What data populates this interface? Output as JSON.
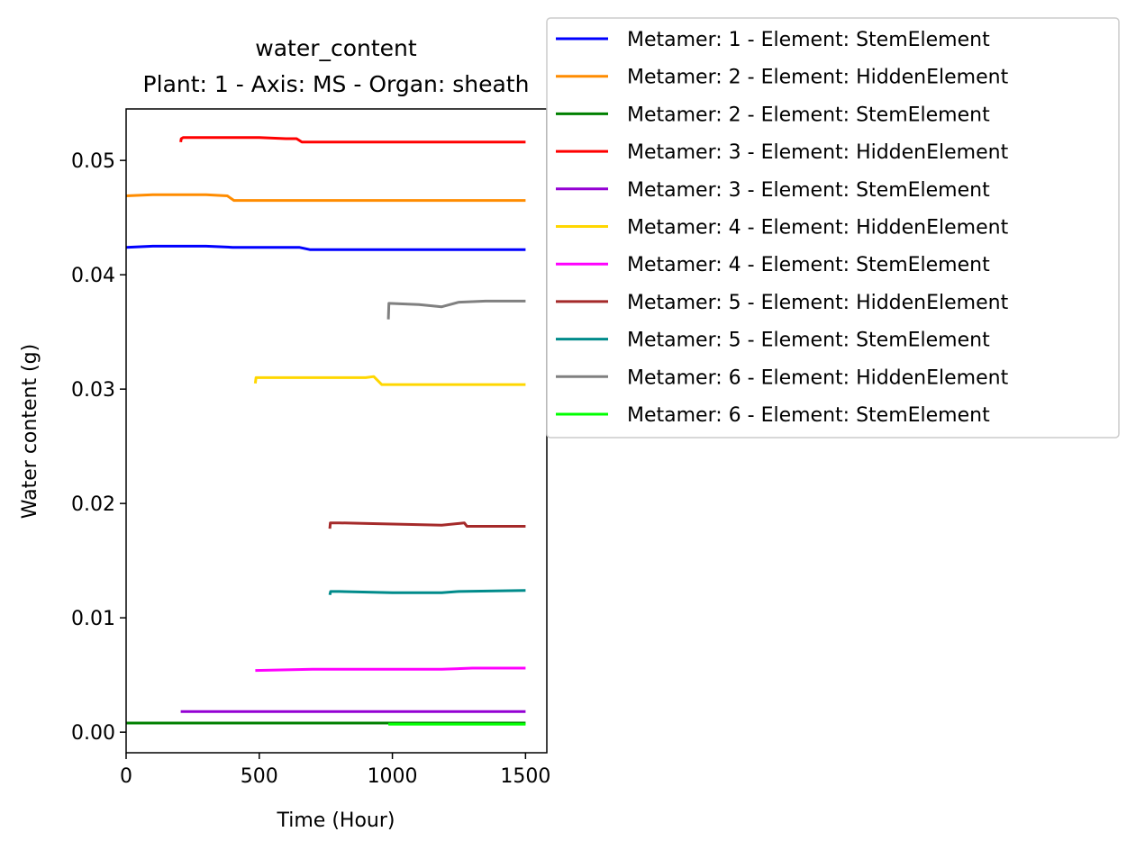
{
  "chart_data": {
    "type": "line",
    "title": "water_content",
    "subtitle": "Plant: 1 - Axis: MS - Organ: sheath",
    "xlabel": "Time (Hour)",
    "ylabel": "Water content (g)",
    "xlim": [
      0,
      1580
    ],
    "ylim": [
      -0.0018,
      0.0545
    ],
    "xticks": [
      0,
      500,
      1000,
      1500
    ],
    "xtick_labels": [
      "0",
      "500",
      "1000",
      "1500"
    ],
    "yticks": [
      0.0,
      0.01,
      0.02,
      0.03,
      0.04,
      0.05
    ],
    "ytick_labels": [
      "0.00",
      "0.01",
      "0.02",
      "0.03",
      "0.04",
      "0.05"
    ],
    "grid": false,
    "legend_position": "outside-top-right",
    "series": [
      {
        "name": "Metamer: 1 - Element: StemElement",
        "color": "#0000ff",
        "x": [
          0,
          100,
          200,
          300,
          400,
          500,
          600,
          650,
          690,
          1000,
          1500
        ],
        "y": [
          0.0424,
          0.0425,
          0.0425,
          0.0425,
          0.0424,
          0.0424,
          0.0424,
          0.0424,
          0.0422,
          0.0422,
          0.0422
        ]
      },
      {
        "name": "Metamer: 2 - Element: HiddenElement",
        "color": "#ff8c00",
        "x": [
          0,
          100,
          200,
          300,
          380,
          405,
          800,
          1200,
          1500
        ],
        "y": [
          0.0469,
          0.047,
          0.047,
          0.047,
          0.0469,
          0.0465,
          0.0465,
          0.0465,
          0.0465
        ]
      },
      {
        "name": "Metamer: 2 - Element: StemElement",
        "color": "#008000",
        "x": [
          0,
          500,
          1000,
          1500
        ],
        "y": [
          0.0008,
          0.0008,
          0.0008,
          0.0008
        ]
      },
      {
        "name": "Metamer: 3 - Element: HiddenElement",
        "color": "#ff0000",
        "x": [
          205,
          207,
          215,
          300,
          400,
          500,
          600,
          640,
          660,
          1000,
          1500
        ],
        "y": [
          0.0516,
          0.0519,
          0.052,
          0.052,
          0.052,
          0.052,
          0.0519,
          0.0519,
          0.0516,
          0.0516,
          0.0516
        ]
      },
      {
        "name": "Metamer: 3 - Element: StemElement",
        "color": "#9400d3",
        "x": [
          205,
          500,
          1000,
          1200,
          1500
        ],
        "y": [
          0.0018,
          0.0018,
          0.0018,
          0.0018,
          0.0018
        ]
      },
      {
        "name": "Metamer: 4 - Element: HiddenElement",
        "color": "#ffd700",
        "x": [
          485,
          488,
          495,
          600,
          700,
          800,
          900,
          930,
          960,
          1200,
          1500
        ],
        "y": [
          0.0305,
          0.031,
          0.031,
          0.031,
          0.031,
          0.031,
          0.031,
          0.0311,
          0.0304,
          0.0304,
          0.0304
        ]
      },
      {
        "name": "Metamer: 4 - Element: StemElement",
        "color": "#ff00ff",
        "x": [
          485,
          700,
          1000,
          1185,
          1300,
          1500
        ],
        "y": [
          0.0054,
          0.0055,
          0.0055,
          0.0055,
          0.0056,
          0.0056
        ]
      },
      {
        "name": "Metamer: 5 - Element: HiddenElement",
        "color": "#a52a2a",
        "x": [
          765,
          767,
          800,
          1000,
          1185,
          1270,
          1280,
          1400,
          1500
        ],
        "y": [
          0.0178,
          0.0183,
          0.0183,
          0.0182,
          0.0181,
          0.0183,
          0.018,
          0.018,
          0.018
        ]
      },
      {
        "name": "Metamer: 5 - Element: StemElement",
        "color": "#008b8b",
        "x": [
          765,
          768,
          800,
          1000,
          1185,
          1250,
          1500
        ],
        "y": [
          0.012,
          0.0123,
          0.0123,
          0.0122,
          0.0122,
          0.0123,
          0.0124
        ]
      },
      {
        "name": "Metamer: 6 - Element: HiddenElement",
        "color": "#808080",
        "x": [
          985,
          987,
          1100,
          1185,
          1250,
          1350,
          1500
        ],
        "y": [
          0.0361,
          0.0375,
          0.0374,
          0.0372,
          0.0376,
          0.0377,
          0.0377
        ]
      },
      {
        "name": "Metamer: 6 - Element: StemElement",
        "color": "#00ff00",
        "x": [
          985,
          1200,
          1500
        ],
        "y": [
          0.0007,
          0.0007,
          0.0007
        ]
      }
    ]
  }
}
